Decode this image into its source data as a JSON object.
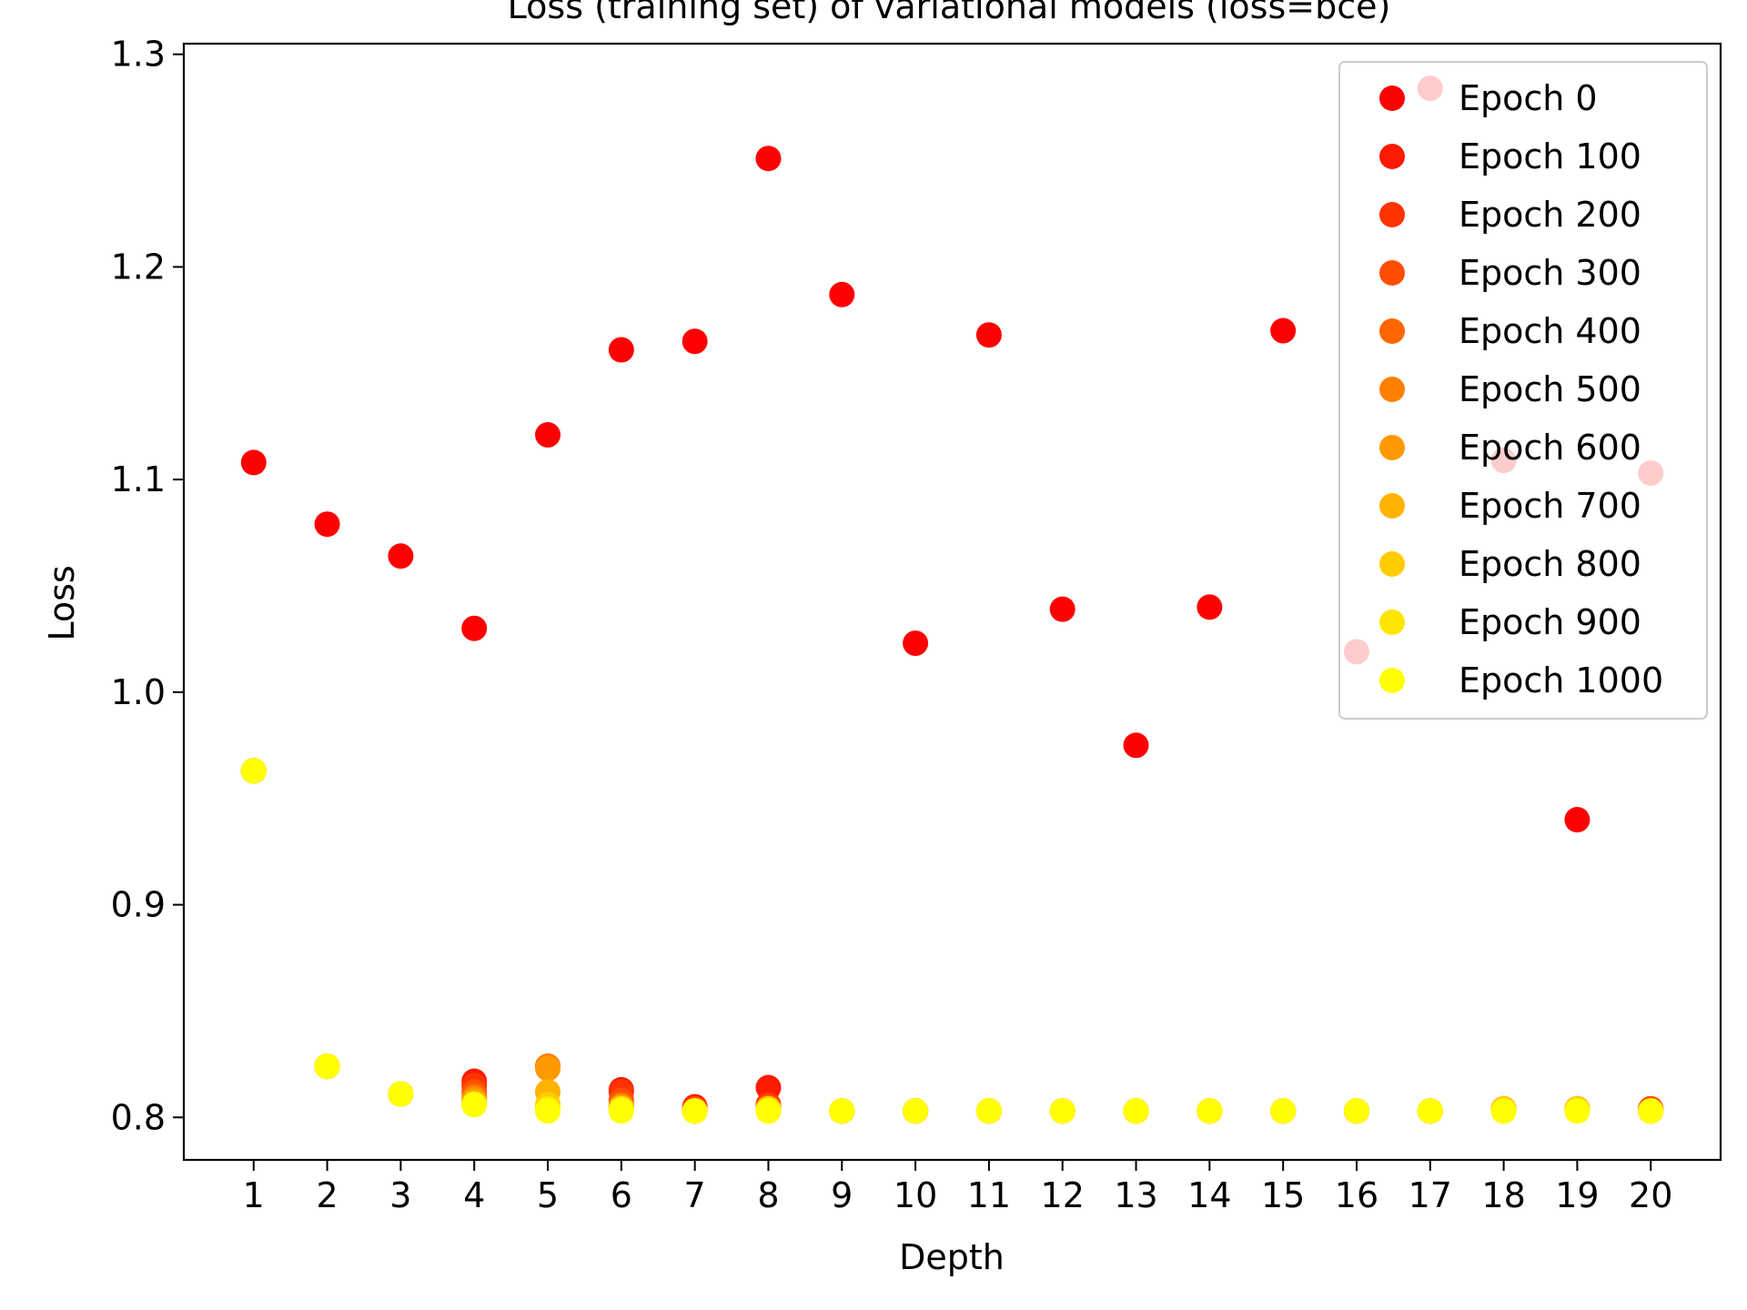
{
  "chart_data": {
    "type": "scatter",
    "title": "Loss (training set) of variational models (loss=bce)",
    "xlabel": "Depth",
    "ylabel": "Loss",
    "x": [
      1,
      2,
      3,
      4,
      5,
      6,
      7,
      8,
      9,
      10,
      11,
      12,
      13,
      14,
      15,
      16,
      17,
      18,
      19,
      20
    ],
    "xlim": [
      0.05,
      20.95
    ],
    "ylim": [
      0.78,
      1.305
    ],
    "yticks": [
      "0.8",
      "0.9",
      "1.0",
      "1.1",
      "1.2",
      "1.3"
    ],
    "xticks": [
      "1",
      "2",
      "3",
      "4",
      "5",
      "6",
      "7",
      "8",
      "9",
      "10",
      "11",
      "12",
      "13",
      "14",
      "15",
      "16",
      "17",
      "18",
      "19",
      "20"
    ],
    "grid": false,
    "legend_position": "top-right",
    "series": [
      {
        "name": "Epoch 0",
        "color": "#ff0000",
        "values": [
          1.108,
          1.079,
          1.064,
          1.03,
          1.121,
          1.161,
          1.165,
          1.251,
          1.187,
          1.023,
          1.168,
          1.039,
          0.975,
          1.04,
          1.17,
          1.019,
          1.284,
          1.109,
          0.94,
          1.103
        ]
      },
      {
        "name": "Epoch 100",
        "color": "#ff1a00",
        "values": [
          0.963,
          0.824,
          0.811,
          0.817,
          0.824,
          0.813,
          0.805,
          0.814,
          0.803,
          0.803,
          0.803,
          0.803,
          0.803,
          0.803,
          0.803,
          0.803,
          0.803,
          0.804,
          0.804,
          0.804
        ]
      },
      {
        "name": "Epoch 200",
        "color": "#ff3300",
        "values": [
          0.963,
          0.824,
          0.811,
          0.815,
          0.824,
          0.812,
          0.804,
          0.806,
          0.803,
          0.803,
          0.803,
          0.803,
          0.803,
          0.803,
          0.803,
          0.803,
          0.803,
          0.804,
          0.804,
          0.804
        ]
      },
      {
        "name": "Epoch 300",
        "color": "#ff4d00",
        "values": [
          0.963,
          0.824,
          0.811,
          0.812,
          0.824,
          0.808,
          0.804,
          0.805,
          0.803,
          0.803,
          0.803,
          0.803,
          0.803,
          0.803,
          0.803,
          0.803,
          0.803,
          0.804,
          0.804,
          0.804
        ]
      },
      {
        "name": "Epoch 400",
        "color": "#ff6600",
        "values": [
          0.963,
          0.824,
          0.811,
          0.81,
          0.824,
          0.806,
          0.803,
          0.804,
          0.803,
          0.803,
          0.803,
          0.803,
          0.803,
          0.803,
          0.803,
          0.803,
          0.803,
          0.804,
          0.804,
          0.803
        ]
      },
      {
        "name": "Epoch 500",
        "color": "#ff8000",
        "values": [
          0.963,
          0.824,
          0.811,
          0.809,
          0.824,
          0.805,
          0.803,
          0.804,
          0.803,
          0.803,
          0.803,
          0.803,
          0.803,
          0.803,
          0.803,
          0.803,
          0.803,
          0.804,
          0.804,
          0.803
        ]
      },
      {
        "name": "Epoch 600",
        "color": "#ff9900",
        "values": [
          0.963,
          0.824,
          0.811,
          0.808,
          0.823,
          0.805,
          0.803,
          0.804,
          0.803,
          0.803,
          0.803,
          0.803,
          0.803,
          0.803,
          0.803,
          0.803,
          0.803,
          0.804,
          0.804,
          0.803
        ]
      },
      {
        "name": "Epoch 700",
        "color": "#ffb300",
        "values": [
          0.963,
          0.824,
          0.811,
          0.807,
          0.812,
          0.804,
          0.803,
          0.804,
          0.803,
          0.803,
          0.803,
          0.803,
          0.803,
          0.803,
          0.803,
          0.803,
          0.803,
          0.804,
          0.804,
          0.803
        ]
      },
      {
        "name": "Epoch 800",
        "color": "#ffcc00",
        "values": [
          0.963,
          0.824,
          0.811,
          0.806,
          0.806,
          0.804,
          0.803,
          0.804,
          0.803,
          0.803,
          0.803,
          0.803,
          0.803,
          0.803,
          0.803,
          0.803,
          0.803,
          0.804,
          0.804,
          0.803
        ]
      },
      {
        "name": "Epoch 900",
        "color": "#ffe600",
        "values": [
          0.963,
          0.824,
          0.811,
          0.806,
          0.804,
          0.804,
          0.803,
          0.803,
          0.803,
          0.803,
          0.803,
          0.803,
          0.803,
          0.803,
          0.803,
          0.803,
          0.803,
          0.803,
          0.803,
          0.803
        ]
      },
      {
        "name": "Epoch 1000",
        "color": "#ffff00",
        "values": [
          0.963,
          0.824,
          0.811,
          0.806,
          0.803,
          0.803,
          0.803,
          0.803,
          0.803,
          0.803,
          0.803,
          0.803,
          0.803,
          0.803,
          0.803,
          0.803,
          0.803,
          0.803,
          0.803,
          0.803
        ]
      }
    ]
  }
}
